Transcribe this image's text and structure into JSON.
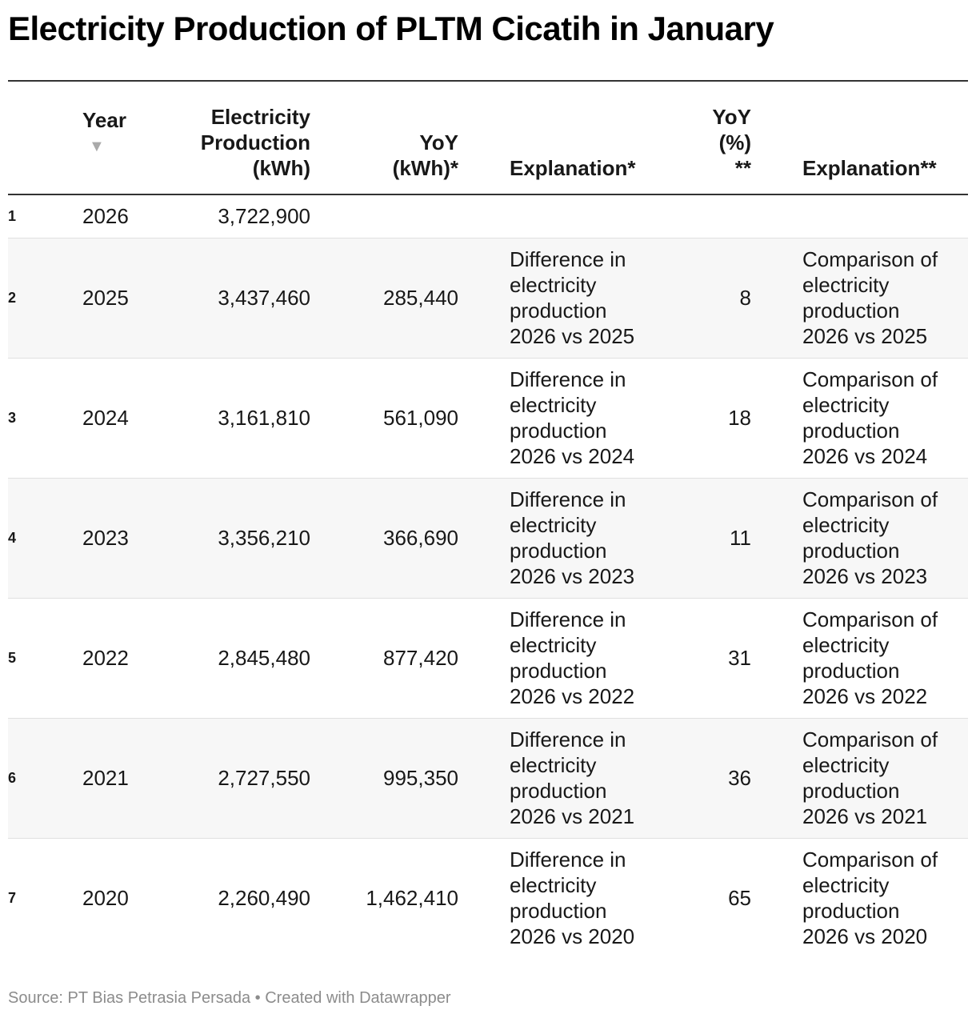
{
  "title": "Electricity Production of PLTM Cicatih in January",
  "headers": {
    "year": "Year",
    "sort_icon": "▼",
    "production": "Electricity\nProduction\n(kWh)",
    "yoy_kwh": "YoY\n(kWh)*",
    "explanation1": "Explanation*",
    "yoy_pct": "YoY\n(%)\n**",
    "explanation2": "Explanation**"
  },
  "rows": [
    {
      "index": "1",
      "year": "2026",
      "production": "3,722,900",
      "yoy_kwh": "",
      "explanation1": "",
      "yoy_pct": "",
      "explanation2": ""
    },
    {
      "index": "2",
      "year": "2025",
      "production": "3,437,460",
      "yoy_kwh": "285,440",
      "explanation1": "Difference in\nelectricity\nproduction\n2026 vs 2025",
      "yoy_pct": "8",
      "explanation2": "Comparison of\nelectricity\nproduction\n2026 vs 2025"
    },
    {
      "index": "3",
      "year": "2024",
      "production": "3,161,810",
      "yoy_kwh": "561,090",
      "explanation1": "Difference in\nelectricity\nproduction\n2026 vs 2024",
      "yoy_pct": "18",
      "explanation2": "Comparison of\nelectricity\nproduction\n2026 vs 2024"
    },
    {
      "index": "4",
      "year": "2023",
      "production": "3,356,210",
      "yoy_kwh": "366,690",
      "explanation1": "Difference in\nelectricity\nproduction\n2026 vs 2023",
      "yoy_pct": "11",
      "explanation2": "Comparison of\nelectricity\nproduction\n2026 vs 2023"
    },
    {
      "index": "5",
      "year": "2022",
      "production": "2,845,480",
      "yoy_kwh": "877,420",
      "explanation1": "Difference in\nelectricity\nproduction\n2026 vs 2022",
      "yoy_pct": "31",
      "explanation2": "Comparison of\nelectricity\nproduction\n2026 vs 2022"
    },
    {
      "index": "6",
      "year": "2021",
      "production": "2,727,550",
      "yoy_kwh": "995,350",
      "explanation1": "Difference in\nelectricity\nproduction\n2026 vs 2021",
      "yoy_pct": "36",
      "explanation2": "Comparison of\nelectricity\nproduction\n2026 vs 2021"
    },
    {
      "index": "7",
      "year": "2020",
      "production": "2,260,490",
      "yoy_kwh": "1,462,410",
      "explanation1": "Difference in\nelectricity\nproduction\n2026 vs 2020",
      "yoy_pct": "65",
      "explanation2": "Comparison of\nelectricity\nproduction\n2026 vs 2020"
    }
  ],
  "source": "Source: PT Bias Petrasia Persada • Created with Datawrapper",
  "chart_data": {
    "type": "table",
    "title": "Electricity Production of PLTM Cicatih in January",
    "columns": [
      "Year",
      "Electricity Production (kWh)",
      "YoY (kWh)*",
      "Explanation*",
      "YoY (%) **",
      "Explanation**"
    ],
    "sort": {
      "column": "Year",
      "order": "descending"
    },
    "x": [
      2026,
      2025,
      2024,
      2023,
      2022,
      2021,
      2020
    ],
    "series": [
      {
        "name": "Electricity Production (kWh)",
        "values": [
          3722900,
          3437460,
          3161810,
          3356210,
          2845480,
          2727550,
          2260490
        ]
      },
      {
        "name": "YoY (kWh)*",
        "values": [
          null,
          285440,
          561090,
          366690,
          877420,
          995350,
          1462410
        ]
      },
      {
        "name": "YoY (%) **",
        "values": [
          null,
          8,
          18,
          11,
          31,
          36,
          65
        ]
      }
    ]
  }
}
